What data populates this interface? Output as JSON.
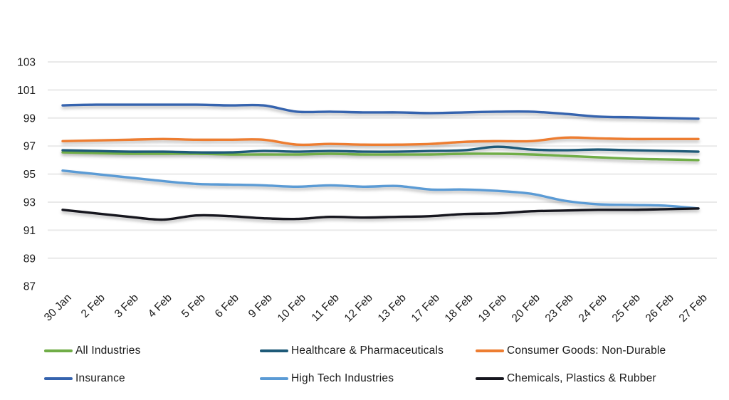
{
  "chart_data": {
    "type": "line",
    "title": "",
    "xlabel": "",
    "ylabel": "",
    "x": [
      "30 Jan",
      "2 Feb",
      "3 Feb",
      "4 Feb",
      "5 Feb",
      "6 Feb",
      "9 Feb",
      "10 Feb",
      "11 Feb",
      "12 Feb",
      "13 Feb",
      "17 Feb",
      "18 Feb",
      "19 Feb",
      "20 Feb",
      "23 Feb",
      "24 Feb",
      "25 Feb",
      "26 Feb",
      "27 Feb"
    ],
    "y_ticks": [
      87,
      89,
      91,
      93,
      95,
      97,
      99,
      101,
      103
    ],
    "ylim": [
      87,
      103
    ],
    "grid": true,
    "legend_position": "bottom",
    "series": [
      {
        "name": "All Industries",
        "color": "#70AD47",
        "values": [
          96.55,
          96.5,
          96.45,
          96.45,
          96.45,
          96.4,
          96.4,
          96.4,
          96.45,
          96.4,
          96.4,
          96.4,
          96.45,
          96.45,
          96.4,
          96.3,
          96.2,
          96.1,
          96.05,
          96.0
        ]
      },
      {
        "name": "Healthcare & Pharmaceuticals",
        "color": "#1E5A78",
        "values": [
          96.7,
          96.65,
          96.6,
          96.6,
          96.55,
          96.55,
          96.65,
          96.6,
          96.65,
          96.6,
          96.6,
          96.65,
          96.7,
          96.95,
          96.75,
          96.7,
          96.75,
          96.7,
          96.65,
          96.6
        ]
      },
      {
        "name": "Consumer Goods: Non-Durable",
        "color": "#ED7D31",
        "values": [
          97.35,
          97.4,
          97.45,
          97.5,
          97.45,
          97.45,
          97.45,
          97.1,
          97.15,
          97.1,
          97.1,
          97.15,
          97.3,
          97.35,
          97.35,
          97.6,
          97.55,
          97.5,
          97.5,
          97.5
        ]
      },
      {
        "name": "Insurance",
        "color": "#3563AE",
        "values": [
          99.9,
          99.95,
          99.95,
          99.95,
          99.95,
          99.9,
          99.9,
          99.45,
          99.45,
          99.4,
          99.4,
          99.35,
          99.4,
          99.45,
          99.45,
          99.3,
          99.1,
          99.05,
          99.0,
          98.95
        ]
      },
      {
        "name": "High Tech Industries",
        "color": "#5B9BD5",
        "values": [
          95.25,
          95.0,
          94.75,
          94.5,
          94.3,
          94.25,
          94.2,
          94.1,
          94.2,
          94.1,
          94.15,
          93.9,
          93.9,
          93.8,
          93.6,
          93.1,
          92.85,
          92.8,
          92.75,
          92.55
        ]
      },
      {
        "name": "Chemicals, Plastics & Rubber",
        "color": "#16161E",
        "values": [
          92.45,
          92.2,
          91.95,
          91.75,
          92.05,
          92.0,
          91.85,
          91.8,
          91.95,
          91.9,
          91.95,
          92.0,
          92.15,
          92.2,
          92.35,
          92.4,
          92.45,
          92.45,
          92.5,
          92.55
        ]
      }
    ]
  },
  "legend": {
    "items": [
      "All Industries",
      "Healthcare & Pharmaceuticals",
      "Consumer Goods: Non-Durable",
      "Insurance",
      "High Tech Industries",
      "Chemicals, Plastics & Rubber"
    ]
  }
}
